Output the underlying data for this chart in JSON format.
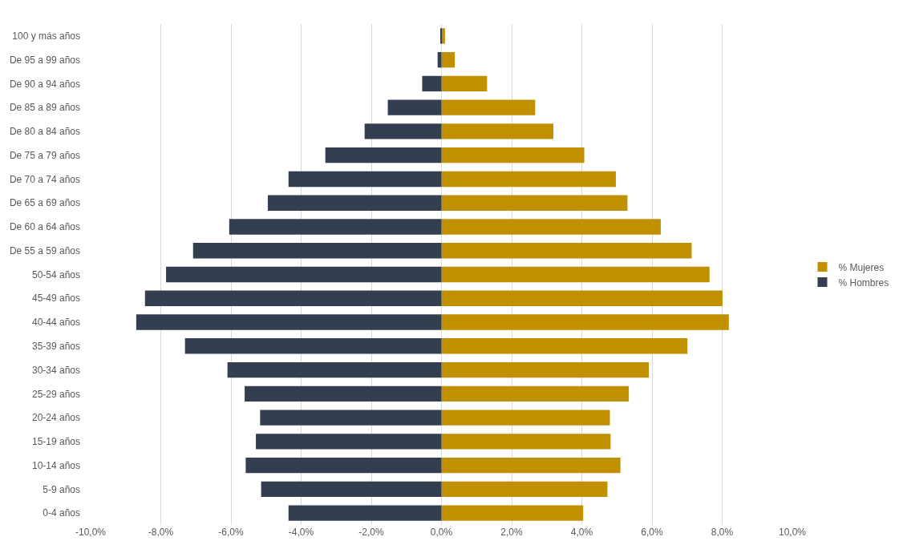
{
  "chart_data": {
    "type": "bar",
    "orientation": "horizontal",
    "stacked": true,
    "categories": [
      "100 y más años",
      "De 95 a 99 años",
      "De 90 a 94 años",
      "De 85 a 89 años",
      "De 80 a 84 años",
      "De 75 a 79 años",
      "De 70 a 74 años",
      "De 65 a 69 años",
      "De 60 a 64 años",
      "De 55 a 59 años",
      "50-54 años",
      "45-49 años",
      "40-44 años",
      "35-39 años",
      "30-34 años",
      "25-29 años",
      "20-24 años",
      "15-19 años",
      "10-14 años",
      "5-9 años",
      "0-4 años"
    ],
    "series": [
      {
        "name": "% Mujeres",
        "color": "#c09000",
        "values": [
          0.1,
          0.38,
          1.3,
          2.67,
          3.19,
          4.07,
          4.97,
          5.3,
          6.25,
          7.13,
          7.64,
          8.01,
          8.19,
          7.01,
          5.91,
          5.34,
          4.8,
          4.82,
          5.1,
          4.73,
          4.04
        ]
      },
      {
        "name": "% Hombres",
        "color": "#333f50",
        "values": [
          -0.03,
          -0.11,
          -0.55,
          -1.53,
          -2.19,
          -3.31,
          -4.36,
          -4.95,
          -6.05,
          -7.08,
          -7.85,
          -8.45,
          -8.7,
          -7.31,
          -6.1,
          -5.61,
          -5.17,
          -5.29,
          -5.58,
          -5.14,
          -4.36
        ]
      }
    ],
    "xlim": [
      -10,
      10
    ],
    "xticks": [
      {
        "value": -10,
        "label": "-10,0%"
      },
      {
        "value": -8,
        "label": "-8,0%"
      },
      {
        "value": -6,
        "label": "-6,0%"
      },
      {
        "value": -4,
        "label": "-4,0%"
      },
      {
        "value": -2,
        "label": "-2,0%"
      },
      {
        "value": 0,
        "label": "0,0%"
      },
      {
        "value": 2,
        "label": "2,0%"
      },
      {
        "value": 4,
        "label": "4,0%"
      },
      {
        "value": 6,
        "label": "6,0%"
      },
      {
        "value": 8,
        "label": "8,0%"
      },
      {
        "value": 10,
        "label": "10,0%"
      }
    ],
    "grid": "x",
    "legend": "right"
  }
}
